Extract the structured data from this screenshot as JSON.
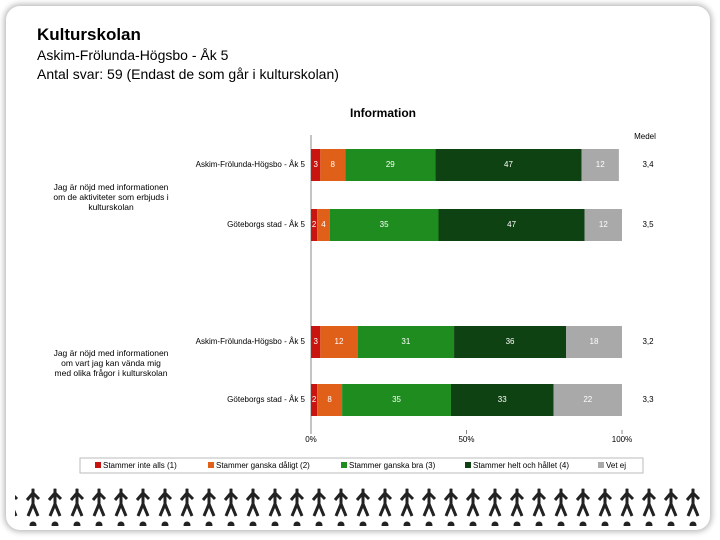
{
  "header": {
    "title": "Kulturskolan",
    "subtitle": "Askim-Frölunda-Högsbo - Åk 5",
    "note": "Antal svar: 59 (Endast de som går i kulturskolan)"
  },
  "chart_data": {
    "type": "bar",
    "orientation": "horizontal",
    "stacked": true,
    "title": "Information",
    "questions": [
      "Jag är nöjd med informationen om de aktiviteter som erbjuds i kulturskolan",
      "Jag är nöjd med informationen om vart jag kan vända mig med olika frågor i kulturskolan"
    ],
    "categories": [
      "Askim-Frölunda-Högsbo - Åk 5",
      "Göteborgs stad - Åk 5",
      "Askim-Frölunda-Högsbo - Åk 5",
      "Göteborgs stad - Åk 5"
    ],
    "series": [
      {
        "name": "Stammer inte alls (1)",
        "color": "#c8150f",
        "values": [
          3,
          2,
          3,
          2
        ]
      },
      {
        "name": "Stammer ganska dåligt (2)",
        "color": "#e0601a",
        "values": [
          8,
          4,
          12,
          8
        ]
      },
      {
        "name": "Stammer ganska bra (3)",
        "color": "#1e8c1e",
        "values": [
          29,
          35,
          31,
          35
        ]
      },
      {
        "name": "Stammer helt och hållet (4)",
        "color": "#0f4212",
        "values": [
          47,
          47,
          36,
          33
        ]
      },
      {
        "name": "Vet ej",
        "color": "#a9a9a9",
        "values": [
          12,
          12,
          18,
          22
        ]
      }
    ],
    "mean": {
      "name": "Medel",
      "values": [
        3.4,
        3.5,
        3.2,
        3.3
      ],
      "value_labels": [
        "3,4",
        "3,5",
        "3,2",
        "3,3"
      ]
    },
    "xlim": [
      0,
      100
    ],
    "xticks": [
      {
        "value": 0,
        "label": "0%"
      },
      {
        "value": 50,
        "label": "50%"
      },
      {
        "value": 100,
        "label": "100%"
      }
    ],
    "legend": "bottom"
  }
}
